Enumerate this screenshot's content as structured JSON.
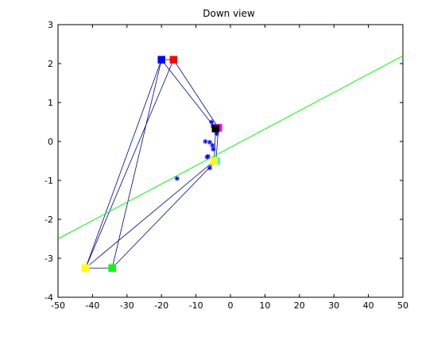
{
  "chart_data": {
    "type": "scatter",
    "title": "Down view",
    "xlabel": "",
    "ylabel": "",
    "xlim": [
      -50,
      50
    ],
    "ylim": [
      -4,
      3
    ],
    "x_ticks": [
      -50,
      -40,
      -30,
      -20,
      -10,
      0,
      10,
      20,
      30,
      40,
      50
    ],
    "y_ticks": [
      -4,
      -3,
      -2,
      -1,
      0,
      1,
      2,
      3
    ],
    "grid": false,
    "legend": "none",
    "fit_line": {
      "color": "#00ff00",
      "points": [
        [
          -50,
          -2.5
        ],
        [
          50,
          2.2
        ]
      ]
    },
    "square_markers": [
      {
        "x": -20,
        "y": 2.1,
        "color": "#0000ff"
      },
      {
        "x": -16.5,
        "y": 2.1,
        "color": "#ff0000"
      },
      {
        "x": -3.5,
        "y": 0.35,
        "color": "#ff00ff"
      },
      {
        "x": -4.3,
        "y": 0.33,
        "color": "#000000"
      },
      {
        "x": -4.2,
        "y": -0.5,
        "color": "#00ffff"
      },
      {
        "x": -4.7,
        "y": -0.5,
        "color": "#ffff00"
      },
      {
        "x": -42,
        "y": -3.25,
        "color": "#ffff00"
      },
      {
        "x": -34.3,
        "y": -3.25,
        "color": "#00ff00"
      }
    ],
    "star_points": [
      {
        "x": -5.5,
        "y": 0.5
      },
      {
        "x": -5.1,
        "y": 0.4
      },
      {
        "x": -4.0,
        "y": 0.2
      },
      {
        "x": -7.3,
        "y": 0.0
      },
      {
        "x": -6.0,
        "y": -0.02
      },
      {
        "x": -5.2,
        "y": -0.1
      },
      {
        "x": -5.0,
        "y": -0.2
      },
      {
        "x": -6.5,
        "y": -0.38
      },
      {
        "x": -6.8,
        "y": -0.4
      },
      {
        "x": -6.0,
        "y": -0.68
      },
      {
        "x": -15.5,
        "y": -0.95
      }
    ],
    "line_color": "#00008b",
    "connections": [
      [
        [
          -42,
          -3.25
        ],
        [
          -34.3,
          -3.25
        ]
      ],
      [
        [
          -42,
          -3.25
        ],
        [
          -20,
          2.1
        ]
      ],
      [
        [
          -42,
          -3.25
        ],
        [
          -16.5,
          2.1
        ]
      ],
      [
        [
          -42,
          -3.25
        ],
        [
          -4.7,
          -0.5
        ]
      ],
      [
        [
          -34.3,
          -3.25
        ],
        [
          -20,
          2.1
        ]
      ],
      [
        [
          -34.3,
          -3.25
        ],
        [
          -4.2,
          -0.5
        ]
      ],
      [
        [
          -20,
          2.1
        ],
        [
          -16.5,
          2.1
        ]
      ],
      [
        [
          -20,
          2.1
        ],
        [
          -4.3,
          0.33
        ]
      ],
      [
        [
          -16.5,
          2.1
        ],
        [
          -3.5,
          0.35
        ]
      ],
      [
        [
          -4.3,
          0.33
        ],
        [
          -3.5,
          0.35
        ]
      ],
      [
        [
          -4.7,
          -0.5
        ],
        [
          -4.2,
          -0.5
        ]
      ],
      [
        [
          -4.7,
          -0.5
        ],
        [
          -4.3,
          0.33
        ]
      ],
      [
        [
          -4.2,
          -0.5
        ],
        [
          -3.5,
          0.35
        ]
      ]
    ]
  }
}
